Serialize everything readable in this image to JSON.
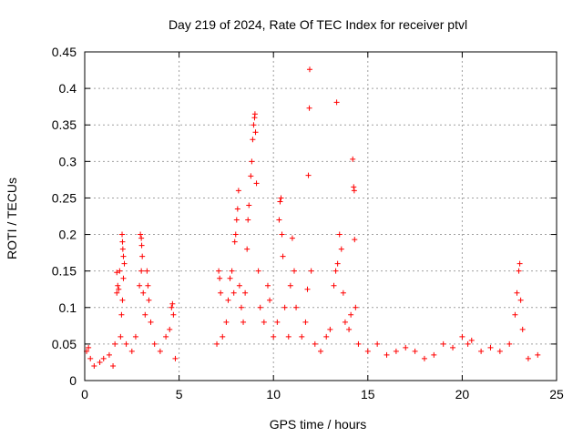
{
  "chart_data": {
    "type": "scatter",
    "title": "Day 219 of 2024, Rate Of TEC Index for receiver ptvl",
    "xlabel": "GPS time / hours",
    "ylabel": "ROTI / TECUs",
    "xlim": [
      0,
      25
    ],
    "ylim": [
      0,
      0.45
    ],
    "xticks": [
      0,
      5,
      10,
      15,
      20,
      25
    ],
    "yticks": [
      0,
      0.05,
      0.1,
      0.15,
      0.2,
      0.25,
      0.3,
      0.35,
      0.4,
      0.45
    ],
    "xtick_labels": [
      "0",
      "5",
      "10",
      "15",
      "20",
      "25"
    ],
    "ytick_labels": [
      "0",
      "0.05",
      "0.1",
      "0.15",
      "0.2",
      "0.25",
      "0.3",
      "0.35",
      "0.4",
      "0.45"
    ],
    "grid": true,
    "marker": "+",
    "series": [
      {
        "name": "ROTI",
        "color": "#ff0000",
        "points": [
          [
            0.1,
            0.04
          ],
          [
            0.2,
            0.045
          ],
          [
            0.3,
            0.03
          ],
          [
            0.5,
            0.02
          ],
          [
            0.8,
            0.025
          ],
          [
            1.0,
            0.03
          ],
          [
            1.3,
            0.035
          ],
          [
            1.5,
            0.02
          ],
          [
            1.6,
            0.05
          ],
          [
            1.7,
            0.12
          ],
          [
            1.75,
            0.13
          ],
          [
            1.8,
            0.125
          ],
          [
            1.85,
            0.15
          ],
          [
            1.7,
            0.148
          ],
          [
            1.9,
            0.06
          ],
          [
            1.95,
            0.09
          ],
          [
            2.0,
            0.11
          ],
          [
            2.05,
            0.14
          ],
          [
            1.98,
            0.2
          ],
          [
            2.0,
            0.19
          ],
          [
            2.02,
            0.18
          ],
          [
            2.05,
            0.17
          ],
          [
            2.1,
            0.16
          ],
          [
            2.2,
            0.05
          ],
          [
            2.5,
            0.04
          ],
          [
            2.7,
            0.06
          ],
          [
            2.9,
            0.13
          ],
          [
            3.0,
            0.15
          ],
          [
            2.95,
            0.2
          ],
          [
            3.0,
            0.195
          ],
          [
            3.02,
            0.185
          ],
          [
            3.05,
            0.17
          ],
          [
            3.1,
            0.12
          ],
          [
            3.2,
            0.09
          ],
          [
            3.3,
            0.15
          ],
          [
            3.35,
            0.13
          ],
          [
            3.4,
            0.11
          ],
          [
            3.5,
            0.08
          ],
          [
            3.7,
            0.05
          ],
          [
            4.0,
            0.04
          ],
          [
            4.3,
            0.06
          ],
          [
            4.5,
            0.07
          ],
          [
            4.6,
            0.1
          ],
          [
            4.65,
            0.105
          ],
          [
            4.7,
            0.09
          ],
          [
            4.8,
            0.03
          ],
          [
            7.0,
            0.05
          ],
          [
            7.1,
            0.15
          ],
          [
            7.15,
            0.14
          ],
          [
            7.2,
            0.12
          ],
          [
            7.3,
            0.06
          ],
          [
            7.5,
            0.08
          ],
          [
            7.6,
            0.11
          ],
          [
            7.7,
            0.14
          ],
          [
            7.8,
            0.15
          ],
          [
            7.9,
            0.12
          ],
          [
            7.95,
            0.19
          ],
          [
            8.0,
            0.2
          ],
          [
            8.05,
            0.22
          ],
          [
            8.1,
            0.235
          ],
          [
            8.15,
            0.26
          ],
          [
            8.2,
            0.13
          ],
          [
            8.3,
            0.1
          ],
          [
            8.4,
            0.08
          ],
          [
            8.5,
            0.12
          ],
          [
            8.6,
            0.18
          ],
          [
            8.65,
            0.22
          ],
          [
            8.7,
            0.24
          ],
          [
            8.8,
            0.28
          ],
          [
            8.85,
            0.3
          ],
          [
            8.9,
            0.33
          ],
          [
            8.95,
            0.35
          ],
          [
            9.0,
            0.36
          ],
          [
            9.02,
            0.365
          ],
          [
            9.05,
            0.34
          ],
          [
            9.1,
            0.27
          ],
          [
            9.2,
            0.15
          ],
          [
            9.3,
            0.1
          ],
          [
            9.5,
            0.08
          ],
          [
            9.7,
            0.13
          ],
          [
            9.8,
            0.11
          ],
          [
            10.0,
            0.06
          ],
          [
            10.2,
            0.08
          ],
          [
            10.3,
            0.22
          ],
          [
            10.35,
            0.245
          ],
          [
            10.4,
            0.25
          ],
          [
            10.45,
            0.2
          ],
          [
            10.5,
            0.17
          ],
          [
            10.6,
            0.1
          ],
          [
            10.8,
            0.06
          ],
          [
            10.9,
            0.13
          ],
          [
            11.0,
            0.195
          ],
          [
            11.1,
            0.15
          ],
          [
            11.2,
            0.1
          ],
          [
            11.5,
            0.06
          ],
          [
            11.7,
            0.08
          ],
          [
            11.8,
            0.125
          ],
          [
            11.85,
            0.281
          ],
          [
            11.9,
            0.373
          ],
          [
            11.92,
            0.426
          ],
          [
            12.0,
            0.15
          ],
          [
            12.2,
            0.05
          ],
          [
            12.5,
            0.04
          ],
          [
            12.8,
            0.06
          ],
          [
            13.0,
            0.07
          ],
          [
            13.2,
            0.13
          ],
          [
            13.3,
            0.15
          ],
          [
            13.35,
            0.381
          ],
          [
            13.4,
            0.16
          ],
          [
            13.5,
            0.2
          ],
          [
            13.6,
            0.18
          ],
          [
            13.7,
            0.12
          ],
          [
            13.8,
            0.08
          ],
          [
            14.0,
            0.07
          ],
          [
            14.1,
            0.09
          ],
          [
            14.2,
            0.303
          ],
          [
            14.25,
            0.265
          ],
          [
            14.28,
            0.26
          ],
          [
            14.3,
            0.193
          ],
          [
            14.35,
            0.1
          ],
          [
            14.5,
            0.05
          ],
          [
            15.0,
            0.04
          ],
          [
            15.5,
            0.05
          ],
          [
            16.0,
            0.035
          ],
          [
            16.5,
            0.04
          ],
          [
            17.0,
            0.045
          ],
          [
            17.5,
            0.04
          ],
          [
            18.0,
            0.03
          ],
          [
            18.5,
            0.035
          ],
          [
            19.0,
            0.05
          ],
          [
            19.5,
            0.045
          ],
          [
            20.0,
            0.06
          ],
          [
            20.3,
            0.05
          ],
          [
            20.5,
            0.055
          ],
          [
            21.0,
            0.04
          ],
          [
            21.5,
            0.045
          ],
          [
            22.0,
            0.04
          ],
          [
            22.5,
            0.05
          ],
          [
            22.8,
            0.09
          ],
          [
            22.9,
            0.12
          ],
          [
            23.0,
            0.15
          ],
          [
            23.05,
            0.16
          ],
          [
            23.1,
            0.11
          ],
          [
            23.2,
            0.07
          ],
          [
            23.5,
            0.03
          ],
          [
            24.0,
            0.035
          ]
        ]
      }
    ]
  }
}
